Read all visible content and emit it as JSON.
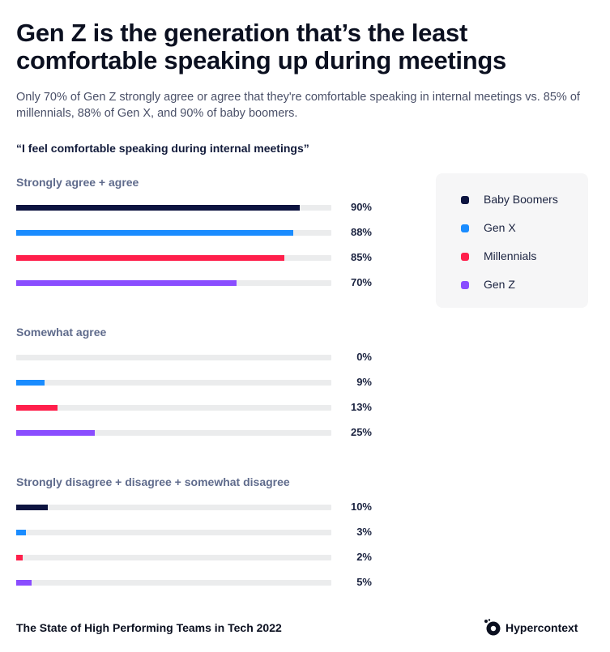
{
  "title": "Gen Z is the generation that’s the least comfortable speaking up during meetings",
  "subtitle": "Only 70% of Gen Z strongly agree or agree that they're comfortable speaking in internal meetings vs. 85% of millennials, 88% of Gen X, and 90% of baby boomers.",
  "question": "“I feel comfortable speaking during internal meetings”",
  "legend": [
    {
      "label": "Baby Boomers",
      "color": "#0d1440"
    },
    {
      "label": "Gen X",
      "color": "#1a8cff"
    },
    {
      "label": "Millennials",
      "color": "#ff1f4b"
    },
    {
      "label": "Gen Z",
      "color": "#8a4dff"
    }
  ],
  "chart_data": {
    "type": "bar",
    "orientation": "horizontal",
    "xlim": [
      0,
      100
    ],
    "unit": "%",
    "series_names": [
      "Baby Boomers",
      "Gen X",
      "Millennials",
      "Gen Z"
    ],
    "series_colors": [
      "#0d1440",
      "#1a8cff",
      "#ff1f4b",
      "#8a4dff"
    ],
    "groups": [
      {
        "name": "Strongly agree + agree",
        "values": [
          90,
          88,
          85,
          70
        ],
        "labels": [
          "90%",
          "88%",
          "85%",
          "70%"
        ]
      },
      {
        "name": "Somewhat agree",
        "values": [
          0,
          9,
          13,
          25
        ],
        "labels": [
          "0%",
          "9%",
          "13%",
          "25%"
        ]
      },
      {
        "name": "Strongly disagree + disagree + somewhat disagree",
        "values": [
          10,
          3,
          2,
          5
        ],
        "labels": [
          "10%",
          "3%",
          "2%",
          "5%"
        ]
      }
    ],
    "legend_position": "right"
  },
  "footer": {
    "report": "The State of High Performing Teams in Tech 2022",
    "brand": "Hypercontext",
    "brand_icon": "hypercontext-logo-icon"
  }
}
